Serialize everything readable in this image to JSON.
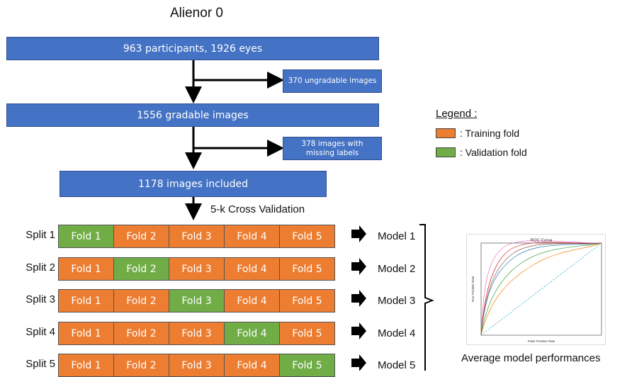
{
  "title": "Alienor 0",
  "flow": {
    "participants": "963 participants, 1926 eyes",
    "ungradable": "370 ungradable images",
    "gradable": "1556 gradable images",
    "missing_labels": "378 images with missing labels",
    "included": "1178 images included",
    "cv_label": "5-k Cross Validation"
  },
  "splits": [
    {
      "label": "Split 1",
      "model": "Model 1",
      "folds": [
        "Fold 1",
        "Fold 2",
        "Fold 3",
        "Fold 4",
        "Fold 5"
      ],
      "validation_index": 0
    },
    {
      "label": "Split 2",
      "model": "Model 2",
      "folds": [
        "Fold 1",
        "Fold 2",
        "Fold 3",
        "Fold 4",
        "Fold 5"
      ],
      "validation_index": 1
    },
    {
      "label": "Split 3",
      "model": "Model 3",
      "folds": [
        "Fold 1",
        "Fold 2",
        "Fold 3",
        "Fold 4",
        "Fold 5"
      ],
      "validation_index": 2
    },
    {
      "label": "Split 4",
      "model": "Model 4",
      "folds": [
        "Fold 1",
        "Fold 2",
        "Fold 3",
        "Fold 4",
        "Fold 5"
      ],
      "validation_index": 3
    },
    {
      "label": "Split 5",
      "model": "Model 5",
      "folds": [
        "Fold 1",
        "Fold 2",
        "Fold 3",
        "Fold 4",
        "Fold 5"
      ],
      "validation_index": 4
    }
  ],
  "legend": {
    "title": "Legend :",
    "training": ": Training fold",
    "validation": ": Validation fold"
  },
  "roc": {
    "title": "ROC Curve",
    "xlabel": "False Positive Rate",
    "ylabel": "True Positive Rate"
  },
  "caption": "Average model performances",
  "colors": {
    "box": "#4472c4",
    "training": "#ed7d31",
    "validation": "#70ad47"
  }
}
